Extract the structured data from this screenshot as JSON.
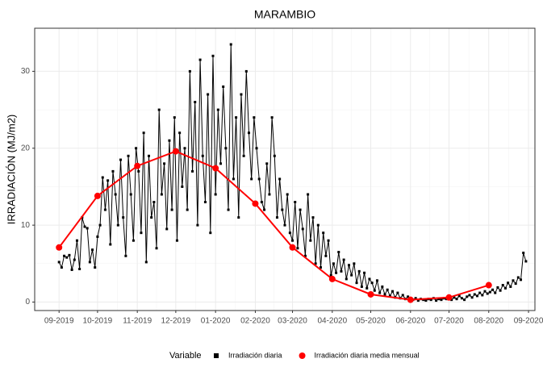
{
  "chart_data": {
    "type": "line",
    "title": "MARAMBIO",
    "y_label": "IRRADIACIÓN (MJ/m2)",
    "legend_title": "Variable",
    "legend_position": "bottom",
    "grid": true,
    "xlim": [
      -19,
      371
    ],
    "ylim": [
      -1.1,
      35.6
    ],
    "yticks": [
      0,
      10,
      20,
      30
    ],
    "xticks": [
      {
        "value": 0,
        "label": "09-2019"
      },
      {
        "value": 30,
        "label": "10-2019"
      },
      {
        "value": 61,
        "label": "11-2019"
      },
      {
        "value": 91,
        "label": "12-2019"
      },
      {
        "value": 122,
        "label": "01-2020"
      },
      {
        "value": 153,
        "label": "02-2020"
      },
      {
        "value": 182,
        "label": "03-2020"
      },
      {
        "value": 213,
        "label": "04-2020"
      },
      {
        "value": 243,
        "label": "05-2020"
      },
      {
        "value": 274,
        "label": "06-2020"
      },
      {
        "value": 304,
        "label": "07-2020"
      },
      {
        "value": 335,
        "label": "08-2020"
      },
      {
        "value": 366,
        "label": "09-2020"
      }
    ],
    "series": [
      {
        "name": "Irradiación diaria",
        "color": "#000000",
        "marker": "square",
        "x": [
          0,
          2,
          4,
          6,
          8,
          10,
          12,
          14,
          16,
          18,
          20,
          22,
          24,
          26,
          28,
          30,
          32,
          34,
          36,
          38,
          40,
          42,
          44,
          46,
          48,
          50,
          52,
          54,
          56,
          58,
          60,
          62,
          64,
          66,
          68,
          70,
          72,
          74,
          76,
          78,
          80,
          82,
          84,
          86,
          88,
          90,
          92,
          94,
          96,
          98,
          100,
          102,
          104,
          106,
          108,
          110,
          112,
          114,
          116,
          118,
          120,
          122,
          124,
          126,
          128,
          130,
          132,
          134,
          136,
          138,
          140,
          142,
          144,
          146,
          148,
          150,
          152,
          154,
          156,
          158,
          160,
          162,
          164,
          166,
          168,
          170,
          172,
          174,
          176,
          178,
          180,
          182,
          184,
          186,
          188,
          190,
          192,
          194,
          196,
          198,
          200,
          202,
          204,
          206,
          208,
          210,
          212,
          214,
          216,
          218,
          220,
          222,
          224,
          226,
          228,
          230,
          232,
          234,
          236,
          238,
          240,
          242,
          244,
          246,
          248,
          250,
          252,
          254,
          256,
          258,
          260,
          262,
          264,
          266,
          268,
          270,
          272,
          274,
          276,
          278,
          280,
          282,
          284,
          286,
          288,
          290,
          292,
          294,
          296,
          298,
          300,
          302,
          304,
          306,
          308,
          310,
          312,
          314,
          316,
          318,
          320,
          322,
          324,
          326,
          328,
          330,
          332,
          334,
          336,
          338,
          340,
          342,
          344,
          346,
          348,
          350,
          352,
          354,
          356,
          358,
          360,
          362,
          364
        ],
        "values": [
          5.2,
          4.5,
          6,
          5.8,
          6.1,
          4.2,
          5.5,
          8,
          4.3,
          11,
          9.8,
          9.6,
          5.2,
          6.8,
          4.5,
          8.5,
          10,
          16.2,
          12,
          15.8,
          7.5,
          17,
          14,
          10,
          18.5,
          11,
          6,
          19,
          14,
          8,
          20,
          17,
          9,
          22,
          5.2,
          19,
          11,
          13,
          7,
          25,
          14,
          18,
          9.5,
          21,
          12,
          24,
          8,
          22,
          15,
          20,
          12,
          30,
          17,
          26,
          10,
          31.5,
          19,
          13,
          27,
          9,
          32,
          14,
          25,
          18,
          28,
          20,
          12,
          33.5,
          16,
          24,
          11,
          27,
          19,
          30,
          22,
          16,
          24,
          20,
          16,
          13,
          12,
          18,
          14,
          24,
          19,
          11,
          16,
          12,
          10,
          14,
          9,
          8,
          13,
          7,
          12,
          9.5,
          6,
          14,
          8,
          11,
          5,
          10,
          4.5,
          9,
          6,
          8,
          3.5,
          5,
          3.8,
          6.5,
          4,
          5.5,
          3,
          4.8,
          3.5,
          5,
          2.5,
          4,
          2,
          3.8,
          1.8,
          3,
          2.5,
          1.5,
          2.8,
          1.2,
          2,
          1,
          1.6,
          0.8,
          1.4,
          0.6,
          1.2,
          0.5,
          0.9,
          0.4,
          0.7,
          0.4,
          0.3,
          0.5,
          0.2,
          0.4,
          0.3,
          0.2,
          0.4,
          0.3,
          0.5,
          0.2,
          0.4,
          0.3,
          0.5,
          0.4,
          0.5,
          0.3,
          0.6,
          0.4,
          0.8,
          0.5,
          0.3,
          0.7,
          0.9,
          0.6,
          1,
          0.8,
          1.2,
          0.9,
          1.4,
          1.1,
          1.3,
          1.6,
          1.2,
          1.9,
          1.5,
          2.2,
          1.8,
          2.5,
          2,
          2.8,
          2.4,
          3.2,
          2.9,
          6.4,
          5.3
        ]
      },
      {
        "name": "Irradiación diaria media mensual",
        "color": "#ff0000",
        "marker": "circle",
        "x": [
          0,
          30,
          61,
          91,
          122,
          153,
          182,
          213,
          243,
          274,
          304,
          335
        ],
        "values": [
          7.1,
          13.8,
          17.7,
          19.6,
          17.4,
          12.8,
          7.1,
          3.0,
          1.0,
          0.3,
          0.6,
          2.2
        ]
      }
    ]
  }
}
